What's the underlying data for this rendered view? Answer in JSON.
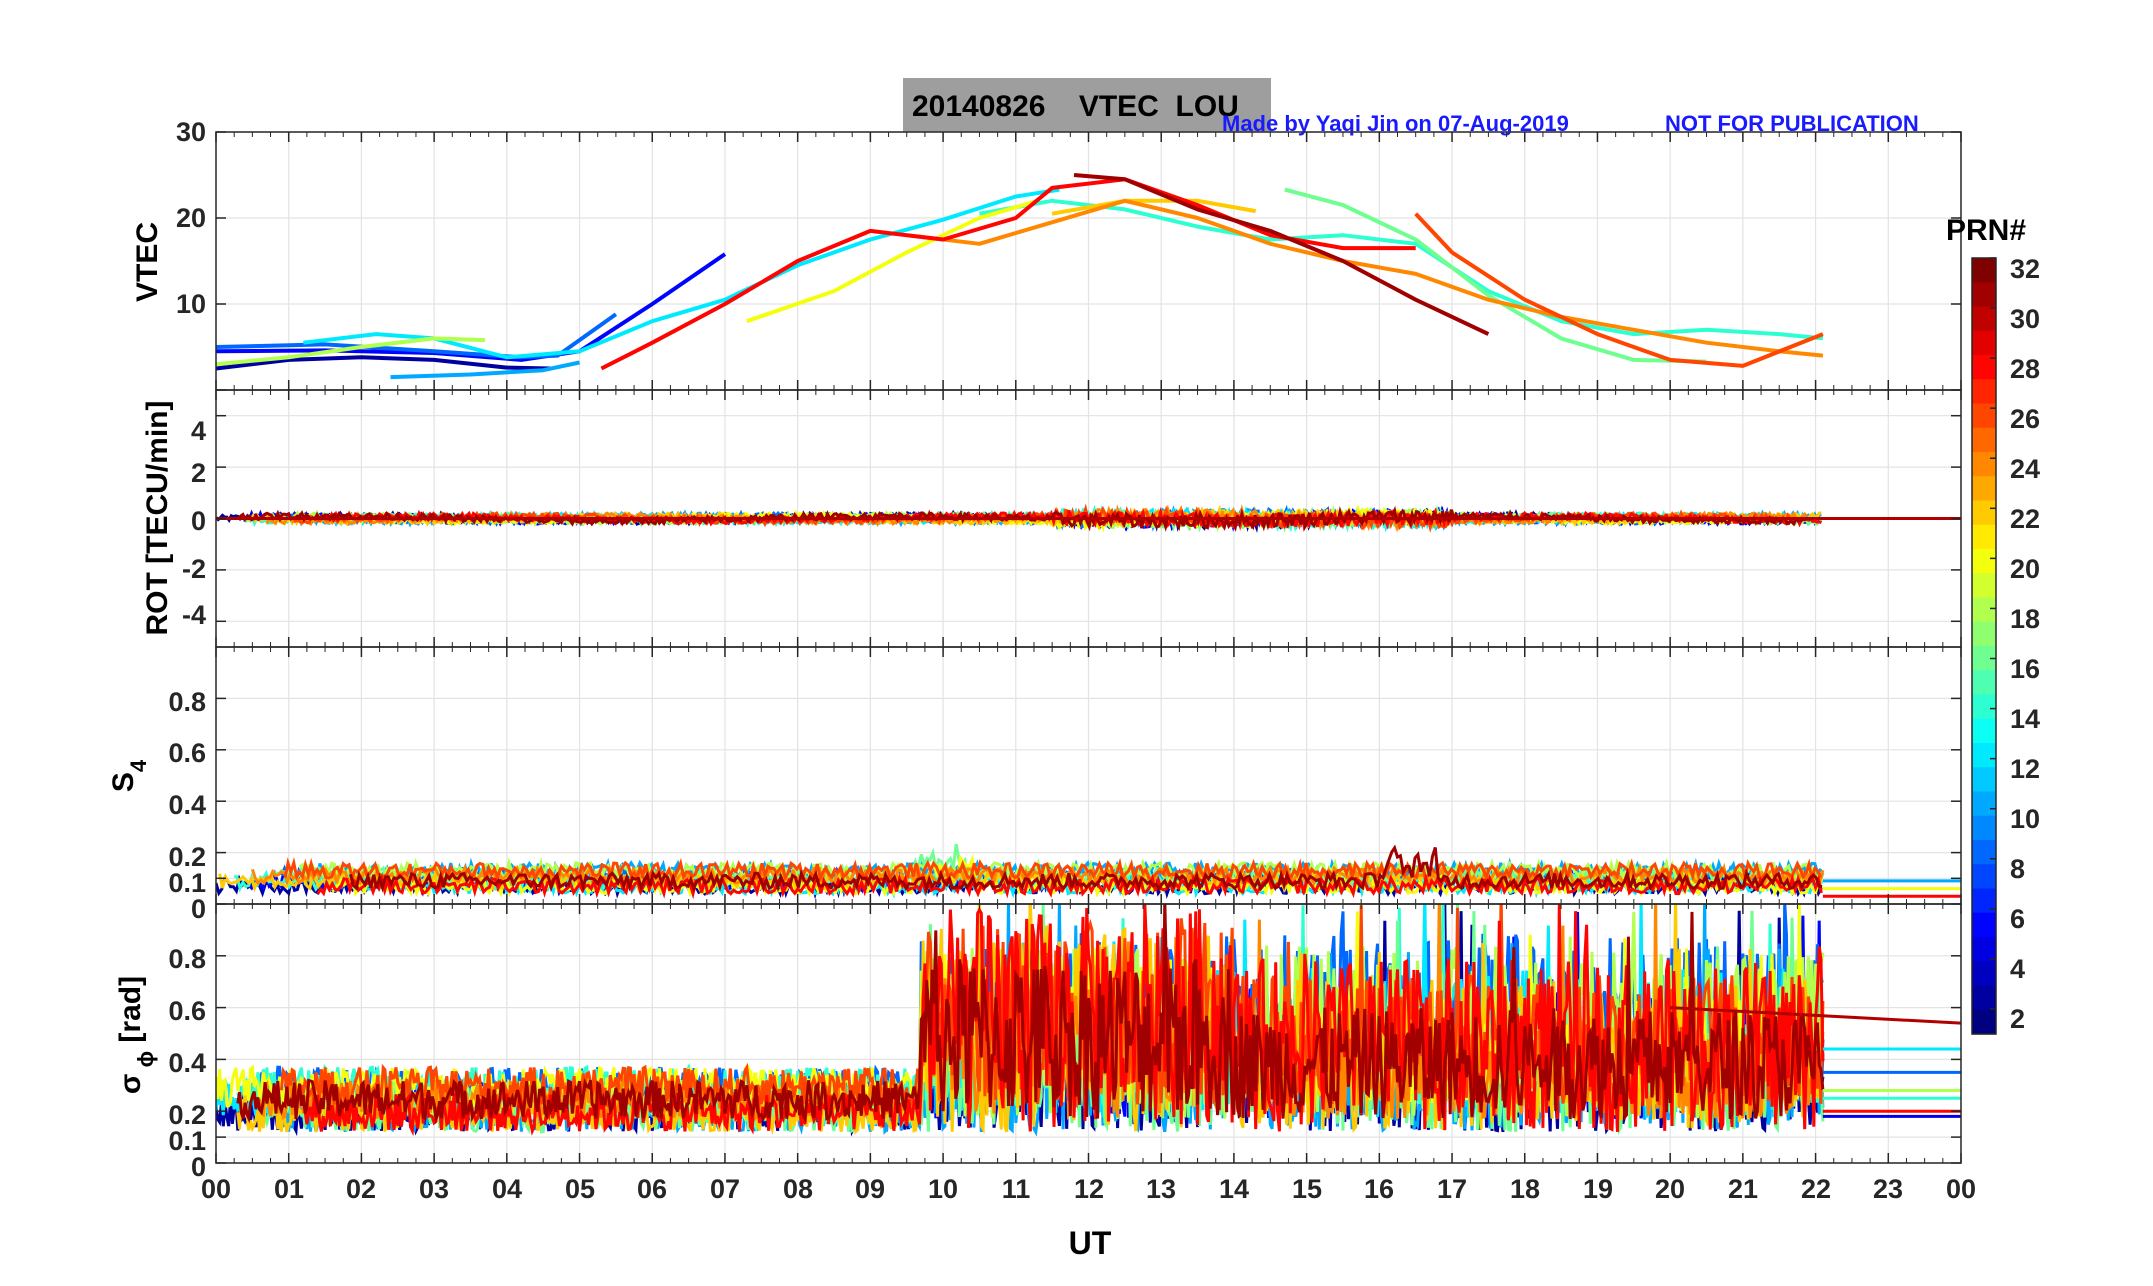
{
  "figure": {
    "title_box": "20140826    VTEC  LOU",
    "credit": "Made by Yaqi Jin on 07-Aug-2019",
    "notice": "NOT FOR PUBLICATION"
  },
  "colorbar": {
    "label": "PRN#",
    "range": [
      1,
      32
    ],
    "ticks": [
      "2",
      "4",
      "6",
      "8",
      "10",
      "12",
      "14",
      "16",
      "18",
      "20",
      "22",
      "24",
      "26",
      "28",
      "30",
      "32"
    ]
  },
  "x_axis": {
    "label": "UT",
    "range_hours": [
      0,
      24
    ],
    "ticks": [
      "00",
      "01",
      "02",
      "03",
      "04",
      "05",
      "06",
      "07",
      "08",
      "09",
      "10",
      "11",
      "12",
      "13",
      "14",
      "15",
      "16",
      "17",
      "18",
      "19",
      "20",
      "21",
      "22",
      "23",
      "00"
    ]
  },
  "chart_data": [
    {
      "type": "line",
      "panel": "VTEC",
      "ylabel": "VTEC",
      "ylim": [
        0,
        30
      ],
      "yticks": [
        "10",
        "20",
        "30"
      ],
      "grid": true,
      "series": [
        {
          "prn": 2,
          "x": [
            0.0,
            1.0,
            2.0,
            3.0,
            4.0,
            4.6
          ],
          "values": [
            2.5,
            3.5,
            3.8,
            3.5,
            2.6,
            2.5
          ]
        },
        {
          "prn": 5,
          "x": [
            0.0,
            1.5,
            3.0,
            4.2,
            5.0,
            6.0,
            7.0
          ],
          "values": [
            4.5,
            4.6,
            4.3,
            3.5,
            4.5,
            10,
            15.8
          ]
        },
        {
          "prn": 8,
          "x": [
            0.0,
            1.5,
            3.0,
            4.2,
            4.7,
            5.5
          ],
          "values": [
            5.0,
            5.3,
            4.5,
            3.8,
            4.0,
            8.8
          ]
        },
        {
          "prn": 10,
          "x": [
            2.4,
            3.5,
            4.5,
            5.0
          ],
          "values": [
            1.5,
            1.8,
            2.3,
            3.2
          ]
        },
        {
          "prn": 12,
          "x": [
            1.2,
            2.2,
            3.0,
            4.0,
            5.0,
            6.0,
            7.0,
            8.0,
            9.0,
            10.0,
            11.0,
            11.6
          ],
          "values": [
            5.5,
            6.5,
            6.0,
            3.8,
            4.5,
            8.0,
            10.5,
            14.5,
            17.5,
            19.8,
            22.5,
            23.3
          ]
        },
        {
          "prn": 14,
          "x": [
            10.5,
            11.5,
            12.5,
            13.5,
            14.5,
            15.5,
            16.5,
            17.5,
            18.5,
            19.5,
            20.5,
            21.5,
            22.1
          ],
          "values": [
            20.5,
            22.0,
            21.0,
            19.0,
            17.5,
            18.0,
            17.0,
            11.5,
            8.0,
            6.5,
            7.0,
            6.5,
            6.0
          ]
        },
        {
          "prn": 16,
          "x": [
            14.7,
            15.5,
            16.5,
            17.5,
            18.5,
            19.5,
            20.5
          ],
          "values": [
            23.3,
            21.5,
            17.5,
            11.0,
            6.0,
            3.5,
            3.3
          ]
        },
        {
          "prn": 18,
          "x": [
            0.0,
            1.0,
            2.0,
            3.0,
            3.7
          ],
          "values": [
            3.0,
            3.8,
            5.0,
            6.0,
            5.8
          ]
        },
        {
          "prn": 20,
          "x": [
            7.3,
            8.5,
            9.5,
            10.5,
            11.3
          ],
          "values": [
            8.0,
            11.5,
            16.0,
            20.0,
            22.0
          ]
        },
        {
          "prn": 22,
          "x": [
            11.5,
            12.5,
            13.5,
            14.3
          ],
          "values": [
            20.5,
            22.0,
            22.0,
            20.8
          ]
        },
        {
          "prn": 24,
          "x": [
            9.5,
            10.5,
            11.5,
            12.5,
            13.5,
            14.5,
            15.5,
            16.5,
            17.5,
            18.5,
            19.5,
            20.5,
            21.5,
            22.1
          ],
          "values": [
            18.0,
            17.0,
            19.5,
            22.0,
            20.0,
            17.0,
            15.0,
            13.5,
            10.5,
            8.5,
            7.0,
            5.5,
            4.5,
            4.0
          ]
        },
        {
          "prn": 26,
          "x": [
            16.5,
            17.0,
            18.0,
            19.0,
            20.0,
            21.0,
            22.1
          ],
          "values": [
            20.5,
            16.0,
            10.5,
            6.5,
            3.5,
            2.8,
            6.5
          ]
        },
        {
          "prn": 28,
          "x": [
            5.3,
            6.0,
            7.0,
            8.0,
            9.0,
            10.0,
            11.0,
            11.5,
            12.5,
            13.5,
            14.5,
            15.5,
            16.5
          ],
          "values": [
            2.5,
            5.5,
            10.0,
            15.0,
            18.5,
            17.5,
            20.0,
            23.5,
            24.5,
            21.5,
            18.0,
            16.5,
            16.5
          ]
        },
        {
          "prn": 31,
          "x": [
            11.8,
            12.5,
            13.5,
            14.5,
            15.5,
            16.5,
            17.5
          ],
          "values": [
            25.0,
            24.5,
            21.0,
            18.5,
            15.0,
            10.5,
            6.5
          ]
        }
      ]
    },
    {
      "type": "line",
      "panel": "ROT",
      "ylabel": "ROT [TECU/min]",
      "ylim": [
        -5,
        5
      ],
      "yticks": [
        "4",
        "2",
        "0",
        "-2",
        "-4"
      ],
      "grid": true,
      "value_range": [
        -0.8,
        0.6
      ],
      "note": "Noisy traces for all PRNs clustered around 0 TECU/min over 00-22 UT"
    },
    {
      "type": "line",
      "panel": "S4",
      "ylabel": "S4",
      "ylim": [
        0,
        1
      ],
      "yticks": [
        "0.8",
        "0.6",
        "0.4",
        "0.2",
        "0.1",
        "0"
      ],
      "grid": true,
      "value_range": [
        0.0,
        0.24
      ],
      "peaks": [
        {
          "x": 9.9,
          "value": 0.24
        },
        {
          "x": 16.5,
          "value": 0.22
        }
      ],
      "note": "S4 mostly 0.02-0.15 for all PRNs"
    },
    {
      "type": "line",
      "panel": "sigma_phi",
      "ylabel": "σ φ [rad]",
      "ylim": [
        0,
        1
      ],
      "yticks": [
        "0.8",
        "0.6",
        "0.4",
        "0.2",
        "0.1",
        "0"
      ],
      "grid": true,
      "value_range": [
        0.05,
        1.0
      ],
      "segments": [
        {
          "x_range": [
            0,
            5
          ],
          "level": [
            0.1,
            0.45
          ]
        },
        {
          "x_range": [
            5,
            9.7
          ],
          "level": [
            0.1,
            0.45
          ]
        },
        {
          "x_range": [
            9.7,
            22.1
          ],
          "level": [
            0.1,
            1.0
          ]
        }
      ],
      "note": "Strong phase scintillation from ~09:45 UT to 22 UT reaching 1.0 rad"
    }
  ]
}
